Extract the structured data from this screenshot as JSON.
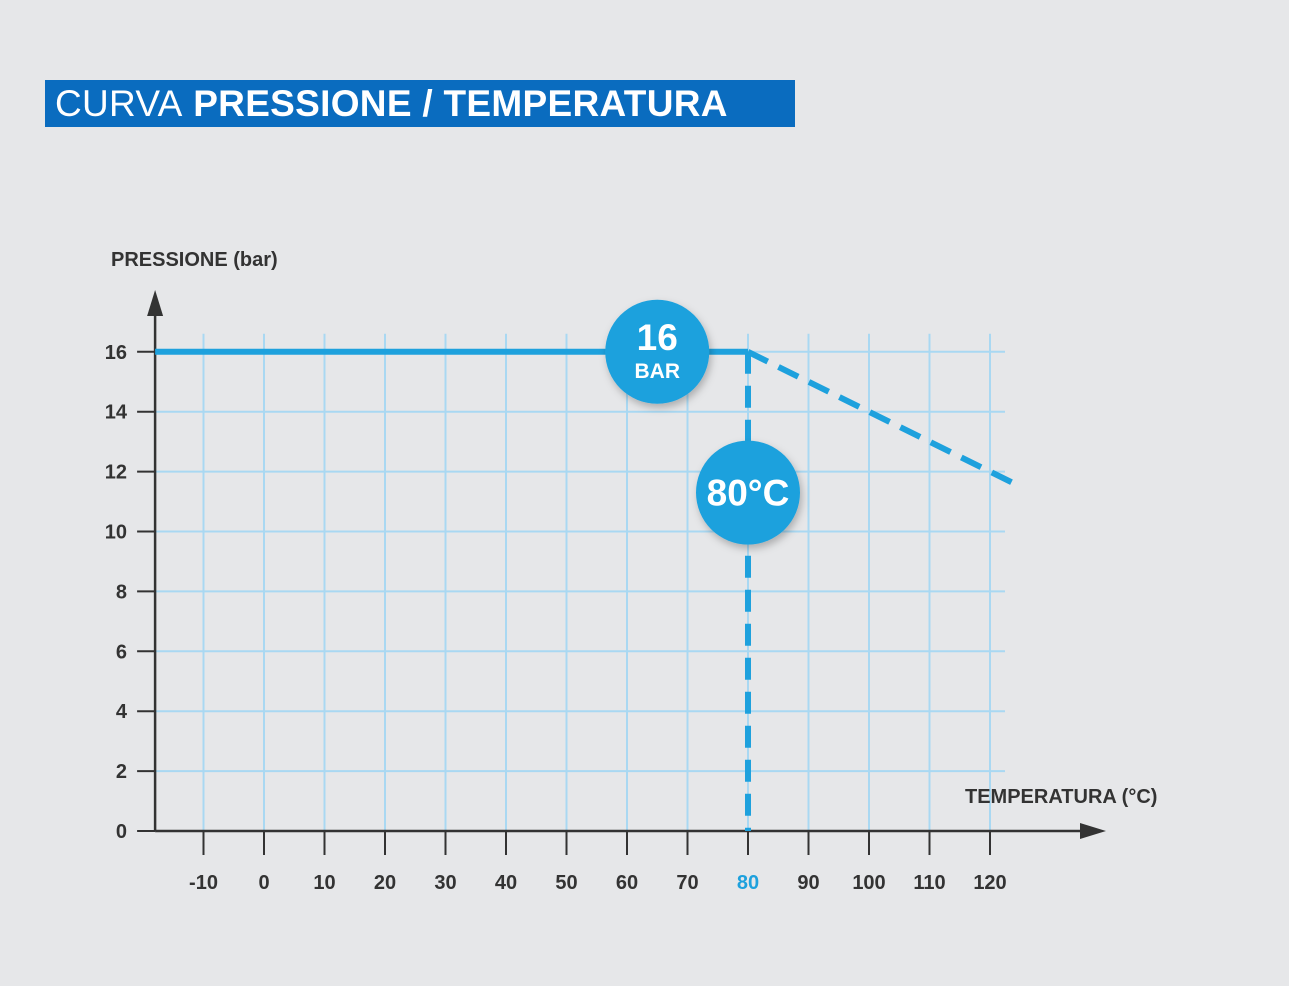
{
  "title": {
    "light": "CURVA",
    "bold": "PRESSIONE / TEMPERATURA"
  },
  "colors": {
    "accent": "#1ea1dd",
    "title_bg": "#0a6cbf",
    "grid": "#a9d8f2",
    "axis": "#333333",
    "background": "#e6e7e9"
  },
  "chart_data": {
    "type": "line",
    "ylabel": "PRESSIONE (bar)",
    "xlabel": "TEMPERATURA (°C)",
    "x_ticks": [
      -10,
      0,
      10,
      20,
      30,
      40,
      50,
      60,
      70,
      80,
      90,
      100,
      110,
      120
    ],
    "y_ticks": [
      0,
      2,
      4,
      6,
      8,
      10,
      12,
      14,
      16
    ],
    "highlight_x_tick": 80,
    "xlim": [
      -18,
      125
    ],
    "ylim": [
      0,
      16
    ],
    "grid": true,
    "series": [
      {
        "style": "solid",
        "points": [
          [
            -18,
            16
          ],
          [
            80,
            16
          ]
        ]
      },
      {
        "style": "dashed",
        "points": [
          [
            80,
            16
          ],
          [
            124,
            11.6
          ]
        ]
      }
    ],
    "reference_lines": [
      {
        "axis": "x",
        "value": 80,
        "style": "dashed"
      }
    ],
    "annotations": [
      {
        "id": "pressure-badge",
        "line1": "16",
        "line2": "BAR",
        "x": 65,
        "y": 16
      },
      {
        "id": "temperature-badge",
        "text": "80°C",
        "x": 80,
        "y": 11.3
      }
    ]
  }
}
